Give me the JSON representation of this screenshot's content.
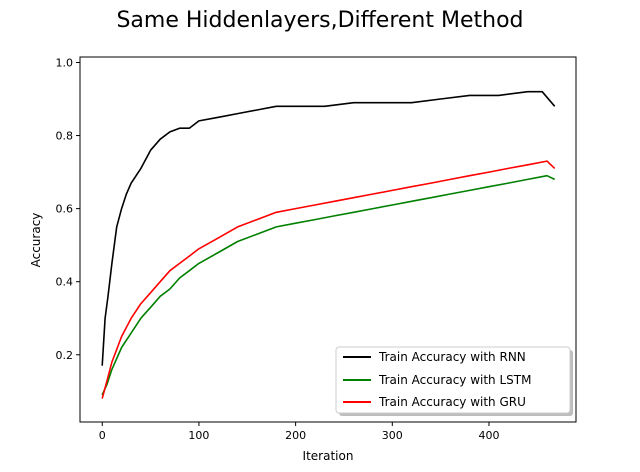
{
  "chart_data": {
    "type": "line",
    "title": "Same Hiddenlayers,Different Method",
    "xlabel": "Iteration",
    "ylabel": "Accuracy",
    "xlim": [
      -23,
      490
    ],
    "ylim": [
      0.016,
      1.015
    ],
    "xticks": [
      0,
      100,
      200,
      300,
      400
    ],
    "yticks": [
      0.2,
      0.4,
      0.6,
      0.8,
      1.0
    ],
    "xtick_labels": [
      "0",
      "100",
      "200",
      "300",
      "400"
    ],
    "ytick_labels": [
      "0.2",
      "0.4",
      "0.6",
      "0.8",
      "1.0"
    ],
    "grid": false,
    "legend_position": "lower-right",
    "series": [
      {
        "name": "Train Accuracy with RNN",
        "color": "#000000",
        "x": [
          0,
          3,
          6,
          10,
          15,
          20,
          25,
          30,
          40,
          50,
          60,
          70,
          80,
          90,
          100,
          120,
          140,
          160,
          180,
          200,
          230,
          260,
          290,
          320,
          350,
          380,
          410,
          440,
          455,
          468
        ],
        "y": [
          0.17,
          0.3,
          0.36,
          0.45,
          0.55,
          0.6,
          0.64,
          0.67,
          0.71,
          0.76,
          0.79,
          0.81,
          0.82,
          0.82,
          0.84,
          0.85,
          0.86,
          0.87,
          0.88,
          0.88,
          0.88,
          0.89,
          0.89,
          0.89,
          0.9,
          0.91,
          0.91,
          0.92,
          0.92,
          0.88
        ]
      },
      {
        "name": "Train Accuracy with LSTM",
        "color": "#008000",
        "x": [
          0,
          5,
          10,
          20,
          30,
          40,
          50,
          60,
          70,
          80,
          90,
          100,
          120,
          140,
          160,
          180,
          200,
          220,
          240,
          260,
          280,
          300,
          320,
          340,
          360,
          380,
          400,
          420,
          440,
          460,
          468
        ],
        "y": [
          0.09,
          0.12,
          0.16,
          0.22,
          0.26,
          0.3,
          0.33,
          0.36,
          0.38,
          0.41,
          0.43,
          0.45,
          0.48,
          0.51,
          0.53,
          0.55,
          0.56,
          0.57,
          0.58,
          0.59,
          0.6,
          0.61,
          0.62,
          0.63,
          0.64,
          0.65,
          0.66,
          0.67,
          0.68,
          0.69,
          0.68
        ]
      },
      {
        "name": "Train Accuracy with GRU",
        "color": "#ff0000",
        "x": [
          0,
          5,
          10,
          20,
          30,
          40,
          50,
          60,
          70,
          80,
          90,
          100,
          120,
          140,
          160,
          180,
          200,
          220,
          240,
          260,
          280,
          300,
          320,
          340,
          360,
          380,
          400,
          420,
          440,
          460,
          468
        ],
        "y": [
          0.08,
          0.13,
          0.18,
          0.25,
          0.3,
          0.34,
          0.37,
          0.4,
          0.43,
          0.45,
          0.47,
          0.49,
          0.52,
          0.55,
          0.57,
          0.59,
          0.6,
          0.61,
          0.62,
          0.63,
          0.64,
          0.65,
          0.66,
          0.67,
          0.68,
          0.69,
          0.7,
          0.71,
          0.72,
          0.73,
          0.71
        ]
      }
    ]
  }
}
